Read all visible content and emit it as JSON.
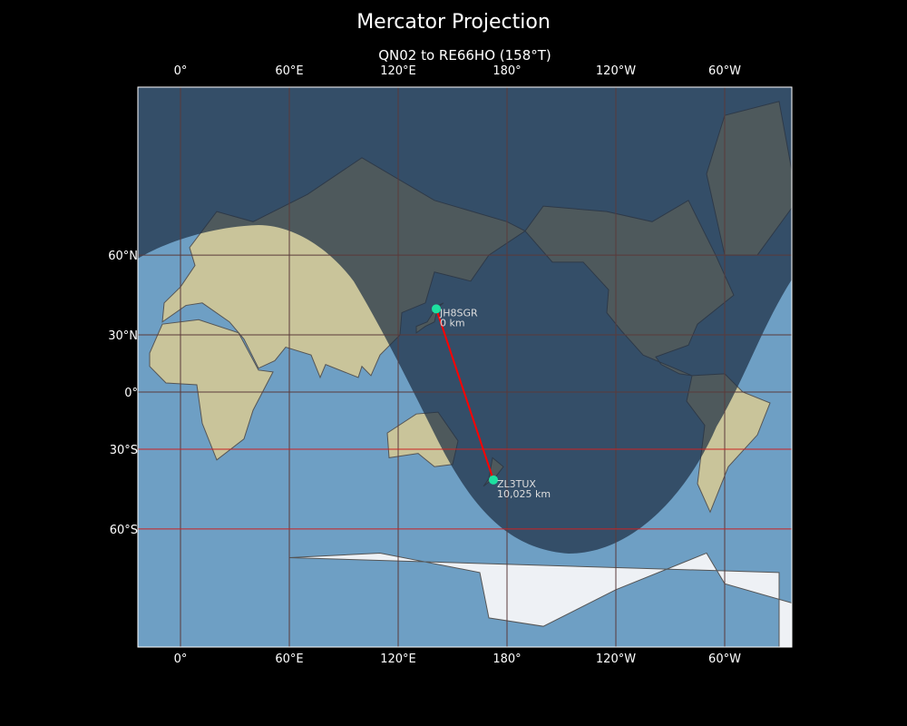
{
  "title": "Mercator Projection",
  "subtitle": "QN02 to RE66HO (158°T)",
  "map": {
    "projection": "Mercator",
    "lon_ticks": [
      {
        "lon": 0,
        "label": "0°"
      },
      {
        "lon": 60,
        "label": "60°E"
      },
      {
        "lon": 120,
        "label": "120°E"
      },
      {
        "lon": 180,
        "label": "180°"
      },
      {
        "lon": 240,
        "label": "120°W"
      },
      {
        "lon": 300,
        "label": "60°W"
      }
    ],
    "lat_ticks": [
      {
        "lat": 60,
        "label": "60°N"
      },
      {
        "lat": 30,
        "label": "30°N"
      },
      {
        "lat": 0,
        "label": "0°"
      },
      {
        "lat": -30,
        "label": "30°S"
      },
      {
        "lat": -60,
        "label": "60°S"
      }
    ],
    "highlighted_lats": [
      -30,
      -60
    ],
    "colors": {
      "ocean": "#6e9fc4",
      "land": "#c9c49a",
      "night": "#1f2f44",
      "path": "#ff0000",
      "station": "#1de0a0",
      "grid": "#5a3a3a",
      "grid_highlight": "#cc2222"
    },
    "stations": [
      {
        "call": "JH8SGR",
        "distance": "0 km",
        "lat": 41.6,
        "lon": 141
      },
      {
        "call": "ZL3TUX",
        "distance": "10,025 km",
        "lat": -43.5,
        "lon": 172.5
      }
    ]
  }
}
